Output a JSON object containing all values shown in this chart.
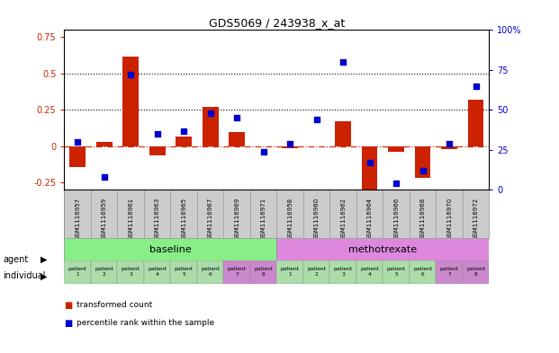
{
  "title": "GDS5069 / 243938_x_at",
  "samples": [
    "GSM1116957",
    "GSM1116959",
    "GSM1116961",
    "GSM1116963",
    "GSM1116965",
    "GSM1116967",
    "GSM1116969",
    "GSM1116971",
    "GSM1116958",
    "GSM1116960",
    "GSM1116962",
    "GSM1116964",
    "GSM1116966",
    "GSM1116968",
    "GSM1116970",
    "GSM1116972"
  ],
  "bar_values": [
    -0.14,
    0.03,
    0.62,
    -0.06,
    0.07,
    0.27,
    0.1,
    0.0,
    -0.01,
    0.0,
    0.17,
    -0.3,
    -0.04,
    -0.22,
    -0.02,
    0.32
  ],
  "dot_values": [
    0.3,
    0.08,
    0.72,
    0.35,
    0.37,
    0.48,
    0.45,
    0.24,
    0.29,
    0.44,
    0.8,
    0.17,
    0.04,
    0.12,
    0.29,
    0.65
  ],
  "ylim_left": [
    -0.3,
    0.8
  ],
  "ylim_right": [
    0,
    100
  ],
  "yticks_left": [
    -0.25,
    0.0,
    0.25,
    0.5,
    0.75
  ],
  "ytick_labels_left": [
    "-0.25",
    "0",
    "0.25",
    "0.5",
    "0.75"
  ],
  "yticks_right": [
    0,
    25,
    50,
    75,
    100
  ],
  "ytick_labels_right": [
    "0",
    "25",
    "50",
    "75",
    "100%"
  ],
  "hlines": [
    0.25,
    0.5
  ],
  "bar_color": "#cc2200",
  "dot_color": "#0000cc",
  "sample_band_color": "#cccccc",
  "agent_green_color": "#88ee88",
  "agent_pink_color": "#dd88dd",
  "indiv_green_color": "#aaddaa",
  "indiv_pink_color": "#cc88cc",
  "agent_label": "agent",
  "individual_label": "individual",
  "baseline_label": "baseline",
  "methotrexate_label": "methotrexate",
  "legend_bar": "transformed count",
  "legend_dot": "percentile rank within the sample",
  "patient_labels": [
    "patient\n1",
    "patient\n2",
    "patient\n3",
    "patient\n4",
    "patient\n5",
    "patient\n6",
    "patient\n7",
    "patient\n8",
    "patient\n1",
    "patient\n2",
    "patient\n3",
    "patient\n4",
    "patient\n5",
    "patient\n6",
    "patient\n7",
    "patient\n8"
  ],
  "indiv_colors": [
    0,
    0,
    0,
    0,
    0,
    0,
    0,
    1,
    0,
    0,
    0,
    0,
    0,
    1,
    0,
    1
  ]
}
